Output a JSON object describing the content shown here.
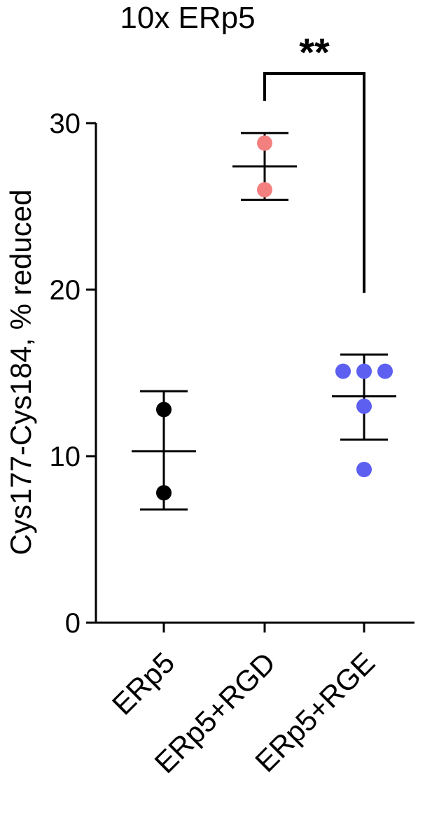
{
  "chart_data": {
    "type": "scatter",
    "title": "10x ERp5",
    "ylabel": "Cys177-Cys184, % reduced",
    "xlabel": "",
    "ylim": [
      0,
      30
    ],
    "yticks": [
      0,
      10,
      20,
      30
    ],
    "categories": [
      "ERp5",
      "ERp5+RGD",
      "ERp5+RGE"
    ],
    "groups": [
      {
        "category": "ERp5",
        "color": "#000000",
        "points": [
          12.8,
          7.8
        ],
        "mean": 10.3,
        "sd_low": 6.8,
        "sd_high": 13.9
      },
      {
        "category": "ERp5+RGD",
        "color": "#f47f7f",
        "points": [
          28.8,
          26.0
        ],
        "mean": 27.4,
        "sd_low": 25.4,
        "sd_high": 29.4
      },
      {
        "category": "ERp5+RGE",
        "color": "#5c5ff0",
        "points": [
          15.1,
          15.1,
          15.1,
          13.0,
          9.2
        ],
        "mean": 13.6,
        "sd_low": 11.0,
        "sd_high": 16.1
      }
    ],
    "significance": {
      "from": "ERp5+RGD",
      "to": "ERp5+RGE",
      "label": "**"
    },
    "grid": false,
    "legend": "none"
  }
}
